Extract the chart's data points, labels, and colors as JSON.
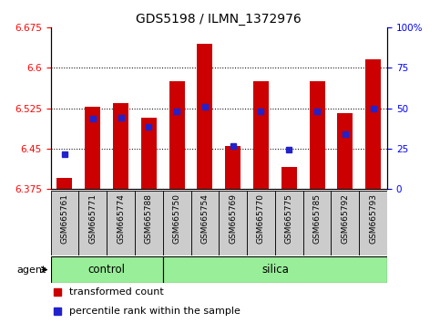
{
  "title": "GDS5198 / ILMN_1372976",
  "samples": [
    "GSM665761",
    "GSM665771",
    "GSM665774",
    "GSM665788",
    "GSM665750",
    "GSM665754",
    "GSM665769",
    "GSM665770",
    "GSM665775",
    "GSM665785",
    "GSM665792",
    "GSM665793"
  ],
  "groups": [
    "control",
    "control",
    "control",
    "control",
    "silica",
    "silica",
    "silica",
    "silica",
    "silica",
    "silica",
    "silica",
    "silica"
  ],
  "bar_values": [
    6.395,
    6.528,
    6.535,
    6.508,
    6.575,
    6.645,
    6.455,
    6.575,
    6.415,
    6.575,
    6.515,
    6.615
  ],
  "blue_values": [
    6.44,
    6.505,
    6.508,
    6.49,
    6.52,
    6.528,
    6.455,
    6.52,
    6.448,
    6.52,
    6.476,
    6.525
  ],
  "ymin": 6.375,
  "ymax": 6.675,
  "yticks": [
    6.375,
    6.45,
    6.525,
    6.6,
    6.675
  ],
  "ytick_labels": [
    "6.375",
    "6.45",
    "6.525",
    "6.6",
    "6.675"
  ],
  "right_ytick_labels": [
    "0",
    "25",
    "50",
    "75",
    "100%"
  ],
  "bar_color": "#cc0000",
  "blue_color": "#2222cc",
  "bar_bottom": 6.375,
  "control_color": "#99ee99",
  "silica_color": "#99ee99",
  "sample_bg_color": "#cccccc",
  "legend_items": [
    "transformed count",
    "percentile rank within the sample"
  ],
  "legend_colors": [
    "#cc0000",
    "#2222cc"
  ],
  "grid_lines": [
    6.45,
    6.525,
    6.6
  ]
}
